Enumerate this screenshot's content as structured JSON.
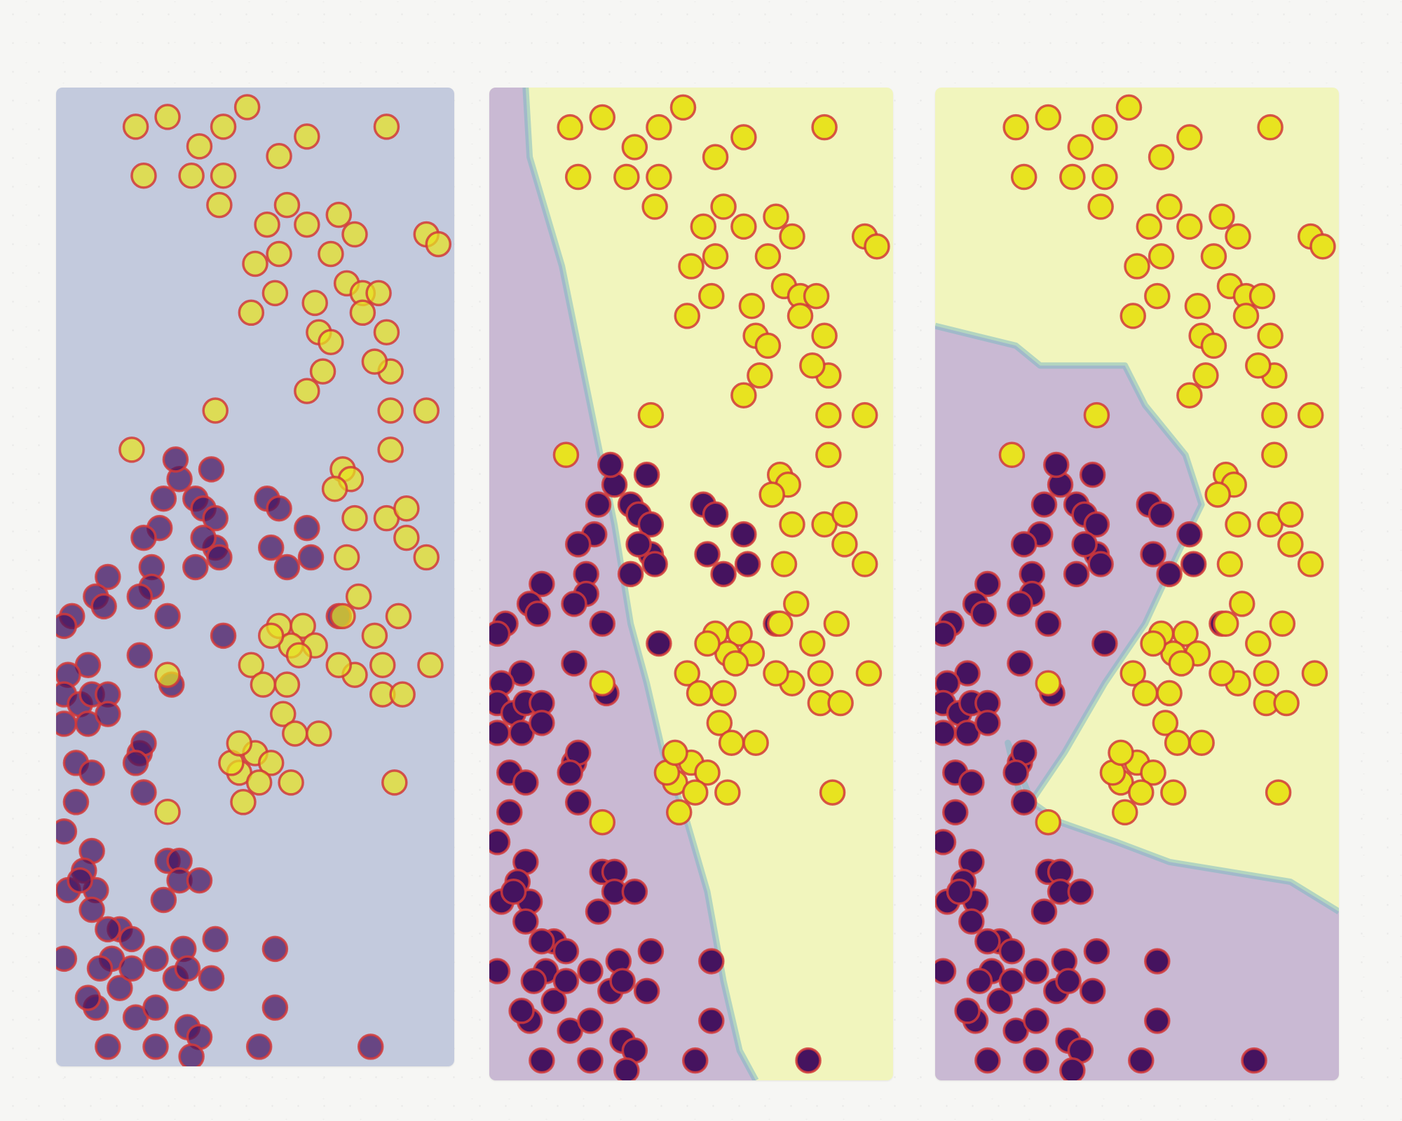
{
  "colors": {
    "class0_fill": "#45135f",
    "class1_fill": "#e8e320",
    "point_edge": "#d23a3a",
    "region_neutral": "#c3cadd",
    "region_class0": "#c9b9d3",
    "region_class1": "#f1f5bd",
    "boundary": "#7fb9c2"
  },
  "chart_data": [
    {
      "type": "scatter",
      "panel": "left",
      "x_range": [
        0,
        1
      ],
      "y_range": [
        0,
        1
      ],
      "grid": false,
      "decision_region": "none",
      "series_points": "shared"
    },
    {
      "type": "scatter",
      "panel": "middle",
      "x_range": [
        0,
        1
      ],
      "y_range": [
        0,
        1
      ],
      "grid": false,
      "decision_region": "boundary",
      "boundary": [
        [
          0.09,
          1.0
        ],
        [
          0.1,
          0.93
        ],
        [
          0.18,
          0.82
        ],
        [
          0.23,
          0.72
        ],
        [
          0.27,
          0.64
        ],
        [
          0.31,
          0.56
        ],
        [
          0.35,
          0.46
        ],
        [
          0.39,
          0.4
        ],
        [
          0.43,
          0.33
        ],
        [
          0.49,
          0.26
        ],
        [
          0.54,
          0.19
        ],
        [
          0.58,
          0.1
        ],
        [
          0.62,
          0.03
        ],
        [
          0.66,
          0.0
        ]
      ]
    },
    {
      "type": "scatter",
      "panel": "right",
      "x_range": [
        0,
        1
      ],
      "y_range": [
        0,
        1
      ],
      "grid": false,
      "decision_region": "boundary",
      "boundary": [
        [
          0.0,
          0.76
        ],
        [
          0.2,
          0.74
        ],
        [
          0.26,
          0.72
        ],
        [
          0.47,
          0.72
        ],
        [
          0.52,
          0.68
        ],
        [
          0.62,
          0.63
        ],
        [
          0.66,
          0.58
        ],
        [
          0.6,
          0.53
        ],
        [
          0.52,
          0.46
        ],
        [
          0.42,
          0.4
        ],
        [
          0.32,
          0.33
        ],
        [
          0.22,
          0.27
        ],
        [
          0.18,
          0.34
        ],
        [
          0.24,
          0.28
        ],
        [
          0.31,
          0.26
        ],
        [
          0.45,
          0.24
        ],
        [
          0.58,
          0.22
        ],
        [
          0.73,
          0.21
        ],
        [
          0.88,
          0.2
        ],
        [
          1.0,
          0.17
        ]
      ]
    }
  ],
  "points": {
    "class1": [
      [
        0.2,
        0.96
      ],
      [
        0.28,
        0.97
      ],
      [
        0.36,
        0.94
      ],
      [
        0.42,
        0.96
      ],
      [
        0.48,
        0.98
      ],
      [
        0.56,
        0.93
      ],
      [
        0.63,
        0.95
      ],
      [
        0.83,
        0.96
      ],
      [
        0.22,
        0.91
      ],
      [
        0.34,
        0.91
      ],
      [
        0.42,
        0.91
      ],
      [
        0.58,
        0.88
      ],
      [
        0.63,
        0.86
      ],
      [
        0.71,
        0.87
      ],
      [
        0.75,
        0.85
      ],
      [
        0.41,
        0.88
      ],
      [
        0.93,
        0.85
      ],
      [
        0.96,
        0.84
      ],
      [
        0.5,
        0.82
      ],
      [
        0.73,
        0.8
      ],
      [
        0.77,
        0.79
      ],
      [
        0.55,
        0.79
      ],
      [
        0.65,
        0.78
      ],
      [
        0.81,
        0.79
      ],
      [
        0.49,
        0.77
      ],
      [
        0.66,
        0.75
      ],
      [
        0.69,
        0.74
      ],
      [
        0.77,
        0.77
      ],
      [
        0.83,
        0.75
      ],
      [
        0.84,
        0.71
      ],
      [
        0.67,
        0.71
      ],
      [
        0.63,
        0.69
      ],
      [
        0.84,
        0.67
      ],
      [
        0.93,
        0.67
      ],
      [
        0.8,
        0.72
      ],
      [
        0.84,
        0.63
      ],
      [
        0.72,
        0.61
      ],
      [
        0.83,
        0.56
      ],
      [
        0.75,
        0.56
      ],
      [
        0.74,
        0.6
      ],
      [
        0.7,
        0.59
      ],
      [
        0.88,
        0.57
      ],
      [
        0.93,
        0.52
      ],
      [
        0.73,
        0.52
      ],
      [
        0.76,
        0.48
      ],
      [
        0.72,
        0.46
      ],
      [
        0.8,
        0.44
      ],
      [
        0.82,
        0.41
      ],
      [
        0.75,
        0.4
      ],
      [
        0.71,
        0.41
      ],
      [
        0.94,
        0.41
      ],
      [
        0.82,
        0.38
      ],
      [
        0.87,
        0.38
      ],
      [
        0.86,
        0.46
      ],
      [
        0.88,
        0.54
      ],
      [
        0.56,
        0.45
      ],
      [
        0.62,
        0.45
      ],
      [
        0.59,
        0.43
      ],
      [
        0.49,
        0.41
      ],
      [
        0.54,
        0.44
      ],
      [
        0.52,
        0.39
      ],
      [
        0.58,
        0.39
      ],
      [
        0.65,
        0.43
      ],
      [
        0.46,
        0.3
      ],
      [
        0.5,
        0.32
      ],
      [
        0.44,
        0.31
      ],
      [
        0.46,
        0.33
      ],
      [
        0.57,
        0.36
      ],
      [
        0.6,
        0.34
      ],
      [
        0.66,
        0.34
      ],
      [
        0.54,
        0.31
      ],
      [
        0.51,
        0.29
      ],
      [
        0.59,
        0.29
      ],
      [
        0.28,
        0.26
      ],
      [
        0.47,
        0.27
      ],
      [
        0.85,
        0.29
      ],
      [
        0.19,
        0.63
      ],
      [
        0.4,
        0.67
      ],
      [
        0.61,
        0.42
      ],
      [
        0.28,
        0.4
      ],
      [
        0.56,
        0.83
      ],
      [
        0.69,
        0.83
      ],
      [
        0.53,
        0.86
      ]
    ],
    "class0": [
      [
        0.31,
        0.6
      ],
      [
        0.3,
        0.62
      ],
      [
        0.27,
        0.58
      ],
      [
        0.35,
        0.58
      ],
      [
        0.39,
        0.61
      ],
      [
        0.37,
        0.57
      ],
      [
        0.4,
        0.56
      ],
      [
        0.4,
        0.53
      ],
      [
        0.37,
        0.54
      ],
      [
        0.41,
        0.52
      ],
      [
        0.35,
        0.51
      ],
      [
        0.26,
        0.55
      ],
      [
        0.22,
        0.54
      ],
      [
        0.24,
        0.51
      ],
      [
        0.24,
        0.49
      ],
      [
        0.21,
        0.48
      ],
      [
        0.13,
        0.5
      ],
      [
        0.1,
        0.48
      ],
      [
        0.12,
        0.47
      ],
      [
        0.04,
        0.46
      ],
      [
        0.02,
        0.45
      ],
      [
        0.53,
        0.58
      ],
      [
        0.56,
        0.57
      ],
      [
        0.54,
        0.53
      ],
      [
        0.58,
        0.51
      ],
      [
        0.63,
        0.55
      ],
      [
        0.64,
        0.52
      ],
      [
        0.71,
        0.46
      ],
      [
        0.21,
        0.42
      ],
      [
        0.42,
        0.44
      ],
      [
        0.28,
        0.46
      ],
      [
        0.29,
        0.39
      ],
      [
        0.08,
        0.41
      ],
      [
        0.03,
        0.4
      ],
      [
        0.02,
        0.38
      ],
      [
        0.06,
        0.37
      ],
      [
        0.09,
        0.38
      ],
      [
        0.13,
        0.38
      ],
      [
        0.02,
        0.35
      ],
      [
        0.08,
        0.35
      ],
      [
        0.13,
        0.36
      ],
      [
        0.21,
        0.32
      ],
      [
        0.22,
        0.33
      ],
      [
        0.2,
        0.31
      ],
      [
        0.05,
        0.31
      ],
      [
        0.09,
        0.3
      ],
      [
        0.22,
        0.28
      ],
      [
        0.02,
        0.24
      ],
      [
        0.09,
        0.22
      ],
      [
        0.07,
        0.2
      ],
      [
        0.1,
        0.18
      ],
      [
        0.03,
        0.18
      ],
      [
        0.06,
        0.19
      ],
      [
        0.28,
        0.21
      ],
      [
        0.31,
        0.21
      ],
      [
        0.31,
        0.19
      ],
      [
        0.36,
        0.19
      ],
      [
        0.16,
        0.14
      ],
      [
        0.19,
        0.13
      ],
      [
        0.09,
        0.16
      ],
      [
        0.27,
        0.17
      ],
      [
        0.32,
        0.12
      ],
      [
        0.4,
        0.13
      ],
      [
        0.55,
        0.12
      ],
      [
        0.14,
        0.11
      ],
      [
        0.11,
        0.1
      ],
      [
        0.02,
        0.11
      ],
      [
        0.25,
        0.11
      ],
      [
        0.3,
        0.09
      ],
      [
        0.33,
        0.1
      ],
      [
        0.39,
        0.09
      ],
      [
        0.16,
        0.08
      ],
      [
        0.1,
        0.06
      ],
      [
        0.08,
        0.07
      ],
      [
        0.2,
        0.05
      ],
      [
        0.25,
        0.06
      ],
      [
        0.33,
        0.04
      ],
      [
        0.36,
        0.03
      ],
      [
        0.55,
        0.06
      ],
      [
        0.13,
        0.02
      ],
      [
        0.25,
        0.02
      ],
      [
        0.34,
        0.01
      ],
      [
        0.51,
        0.02
      ],
      [
        0.79,
        0.02
      ],
      [
        0.05,
        0.27
      ],
      [
        0.13,
        0.14
      ],
      [
        0.19,
        0.1
      ]
    ]
  }
}
